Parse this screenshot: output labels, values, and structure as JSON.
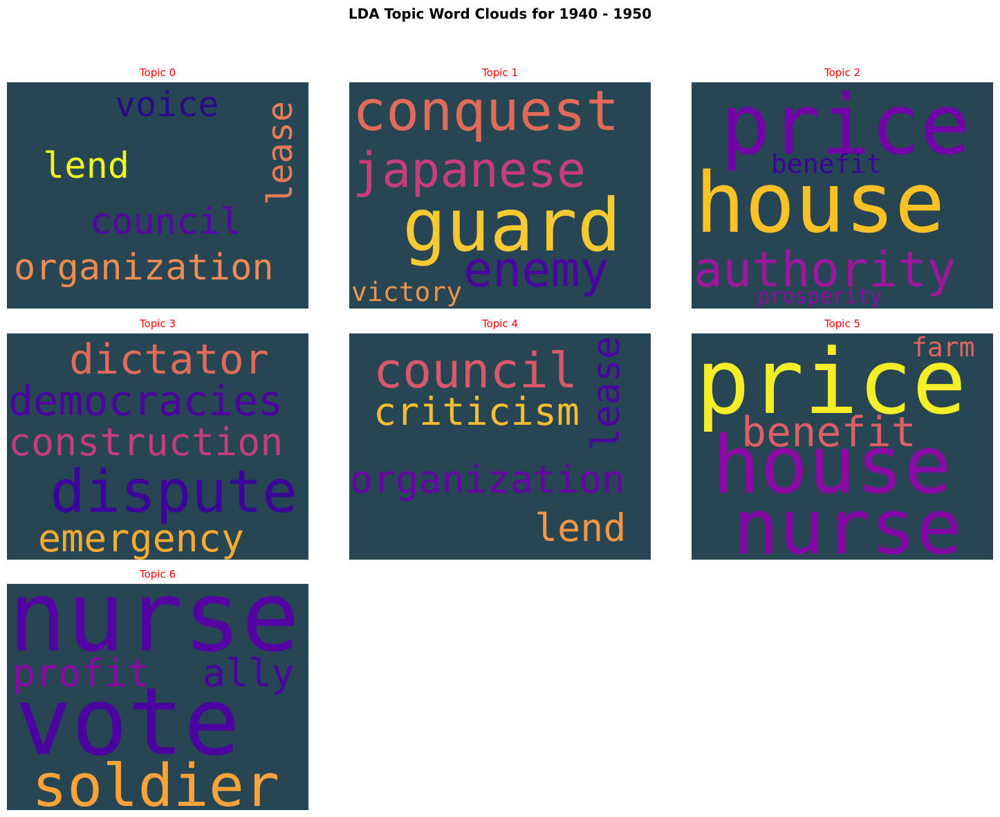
{
  "title": "LDA Topic Word Clouds for 1940 - 1950",
  "colors": {
    "background": "#264653",
    "panel_title": "#ff0000"
  },
  "chart_data": {
    "type": "wordcloud",
    "title": "LDA Topic Word Clouds for 1940 - 1950",
    "topics": [
      {
        "title": "Topic 0",
        "words": [
          {
            "text": "voice",
            "color": "#2b0a8a"
          },
          {
            "text": "lease",
            "color": "#e97b56"
          },
          {
            "text": "lend",
            "color": "#eff821"
          },
          {
            "text": "council",
            "color": "#5c01a6"
          },
          {
            "text": "organization",
            "color": "#ee8a52"
          }
        ]
      },
      {
        "title": "Topic 1",
        "words": [
          {
            "text": "conquest",
            "color": "#e16a58"
          },
          {
            "text": "japanese",
            "color": "#c83e7d"
          },
          {
            "text": "guard",
            "color": "#f8c931"
          },
          {
            "text": "enemy",
            "color": "#4a02a0"
          },
          {
            "text": "victory",
            "color": "#f0934a"
          }
        ]
      },
      {
        "title": "Topic 2",
        "words": [
          {
            "text": "price",
            "color": "#7201a8"
          },
          {
            "text": "benefit",
            "color": "#3a049a"
          },
          {
            "text": "house",
            "color": "#fbc125"
          },
          {
            "text": "authority",
            "color": "#9c179e"
          },
          {
            "text": "prosperity",
            "color": "#8f0da4"
          }
        ]
      },
      {
        "title": "Topic 3",
        "words": [
          {
            "text": "dictator",
            "color": "#e16a58"
          },
          {
            "text": "democracies",
            "color": "#4c02a1"
          },
          {
            "text": "construction",
            "color": "#c33d80"
          },
          {
            "text": "dispute",
            "color": "#3c049b"
          },
          {
            "text": "emergency",
            "color": "#fbaa30"
          }
        ]
      },
      {
        "title": "Topic 4",
        "words": [
          {
            "text": "council",
            "color": "#d9586a"
          },
          {
            "text": "lease",
            "color": "#4c02a1"
          },
          {
            "text": "criticism",
            "color": "#f9bd2f"
          },
          {
            "text": "organization",
            "color": "#6a00a8"
          },
          {
            "text": "lend",
            "color": "#f89540"
          }
        ]
      },
      {
        "title": "Topic 5",
        "words": [
          {
            "text": "price",
            "color": "#f3ee27"
          },
          {
            "text": "farm",
            "color": "#e16462"
          },
          {
            "text": "benefit",
            "color": "#dd5e66"
          },
          {
            "text": "house",
            "color": "#8b0aa5"
          },
          {
            "text": "nurse",
            "color": "#8506a6"
          }
        ]
      },
      {
        "title": "Topic 6",
        "words": [
          {
            "text": "nurse",
            "color": "#5402a3"
          },
          {
            "text": "profit",
            "color": "#8b0aa5"
          },
          {
            "text": "ally",
            "color": "#4903a0"
          },
          {
            "text": "vote",
            "color": "#4c02a1"
          },
          {
            "text": "soldier",
            "color": "#fba238"
          }
        ]
      }
    ]
  }
}
